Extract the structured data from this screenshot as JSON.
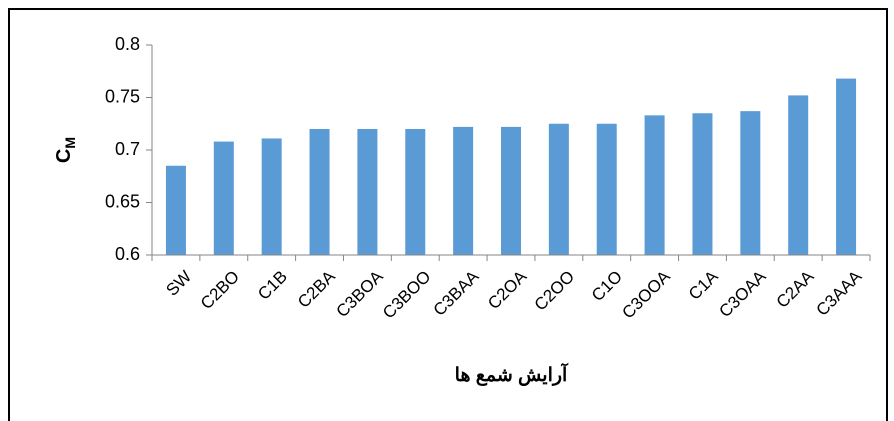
{
  "chart_data": {
    "type": "bar",
    "ylabel": {
      "main": "C",
      "sub": "M"
    },
    "xlabel": "آرایش شمع ها",
    "categories": [
      "SW",
      "C2BO",
      "C1B",
      "C2BA",
      "C3BOA",
      "C3BOO",
      "C3BAA",
      "C2OA",
      "C2OO",
      "C1O",
      "C3OOA",
      "C1A",
      "C3OAA",
      "C2AA",
      "C3AAA"
    ],
    "values": [
      0.685,
      0.708,
      0.711,
      0.72,
      0.72,
      0.72,
      0.722,
      0.722,
      0.725,
      0.725,
      0.733,
      0.735,
      0.737,
      0.752,
      0.768
    ],
    "color": "#5b9bd5",
    "ylim": [
      0.6,
      0.8
    ],
    "yticks": [
      0.6,
      0.65,
      0.7,
      0.75,
      0.8
    ],
    "grid": false
  }
}
